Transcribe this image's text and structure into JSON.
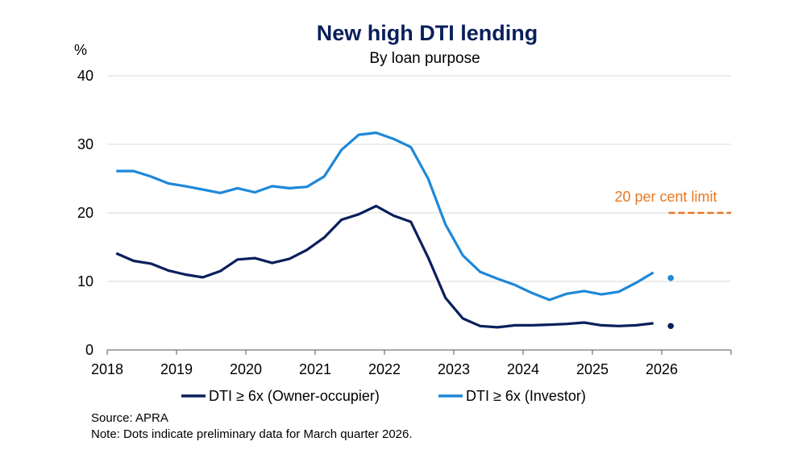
{
  "chart_data": {
    "type": "line",
    "title": "New high DTI lending",
    "subtitle": "By loan purpose",
    "ylabel": "%",
    "xlabel": "",
    "xlim": [
      2018,
      2027
    ],
    "ylim": [
      0,
      40
    ],
    "y_ticks": [
      0,
      10,
      20,
      30,
      40
    ],
    "x_ticks": [
      2018,
      2019,
      2020,
      2021,
      2022,
      2023,
      2024,
      2025,
      2026
    ],
    "grid": true,
    "legend_position": "bottom",
    "series": [
      {
        "name": "DTI ≥ 6x (Owner-occupier)",
        "color": "#0a1f5c",
        "x": [
          2018.13,
          2018.38,
          2018.63,
          2018.88,
          2019.13,
          2019.38,
          2019.63,
          2019.88,
          2020.13,
          2020.38,
          2020.63,
          2020.88,
          2021.13,
          2021.38,
          2021.63,
          2021.88,
          2022.13,
          2022.38,
          2022.63,
          2022.88,
          2023.13,
          2023.38,
          2023.63,
          2023.88,
          2024.13,
          2024.38,
          2024.63,
          2024.88,
          2025.13,
          2025.38,
          2025.63,
          2025.88
        ],
        "values": [
          14.1,
          13.0,
          12.6,
          11.6,
          11.0,
          10.6,
          11.5,
          13.2,
          13.4,
          12.7,
          13.3,
          14.6,
          16.4,
          19.0,
          19.8,
          21.0,
          19.6,
          18.7,
          13.5,
          7.6,
          4.6,
          3.5,
          3.3,
          3.6,
          3.6,
          3.7,
          3.8,
          4.0,
          3.6,
          3.5,
          3.6,
          3.9
        ]
      },
      {
        "name": "DTI ≥ 6x (Investor)",
        "color": "#1e88d8",
        "x": [
          2018.13,
          2018.38,
          2018.63,
          2018.88,
          2019.13,
          2019.38,
          2019.63,
          2019.88,
          2020.13,
          2020.38,
          2020.63,
          2020.88,
          2021.13,
          2021.38,
          2021.63,
          2021.88,
          2022.13,
          2022.38,
          2022.63,
          2022.88,
          2023.13,
          2023.38,
          2023.63,
          2023.88,
          2024.13,
          2024.38,
          2024.63,
          2024.88,
          2025.13,
          2025.38,
          2025.63,
          2025.88
        ],
        "values": [
          26.1,
          26.1,
          25.3,
          24.3,
          23.9,
          23.4,
          22.9,
          23.6,
          23.0,
          23.9,
          23.6,
          23.8,
          25.3,
          29.2,
          31.4,
          31.7,
          30.8,
          29.6,
          25.0,
          18.3,
          13.8,
          11.4,
          10.4,
          9.5,
          8.3,
          7.3,
          8.2,
          8.6,
          8.1,
          8.5,
          9.8,
          11.3
        ]
      }
    ],
    "preliminary_points": [
      {
        "series": "DTI ≥ 6x (Owner-occupier)",
        "x": 2026.13,
        "value": 3.5
      },
      {
        "series": "DTI ≥ 6x (Investor)",
        "x": 2026.13,
        "value": 10.5
      }
    ],
    "limit_line": {
      "label": "20 per cent limit",
      "value": 20,
      "x_start": 2026.1,
      "x_end": 2027.0,
      "color": "#e87722"
    }
  },
  "footer": {
    "source": "Source: APRA",
    "note": "Note: Dots indicate preliminary data for March quarter 2026."
  }
}
